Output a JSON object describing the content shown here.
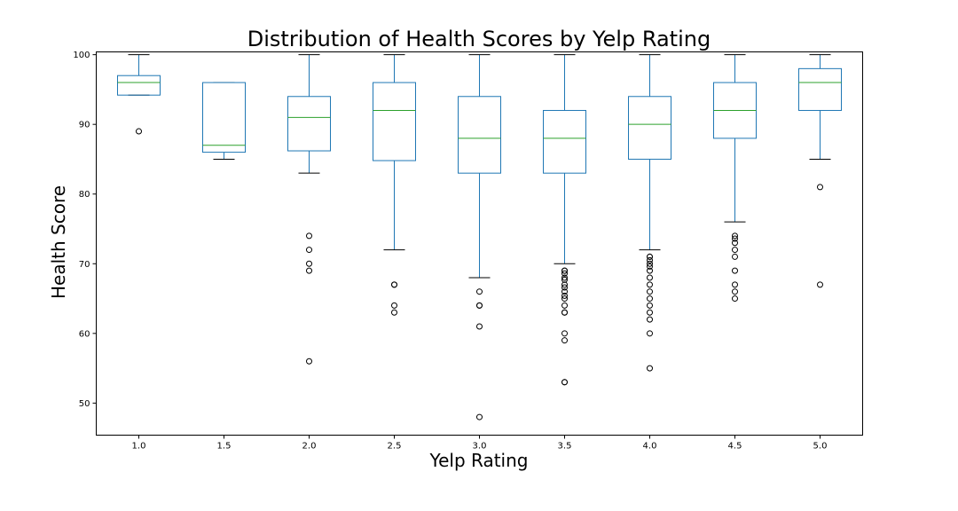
{
  "chart_data": {
    "type": "box",
    "title": "Distribution of Health Scores by Yelp Rating",
    "xlabel": "Yelp Rating",
    "ylabel": "Health Score",
    "ylim": [
      45.4,
      100.4
    ],
    "yticks": [
      50,
      60,
      70,
      80,
      90,
      100
    ],
    "grid": false,
    "colors": {
      "box": "#1f77b4",
      "median": "#2ca02c",
      "whisker": "#1f77b4",
      "cap": "#000000",
      "flier": "#000000",
      "axes": "#000000"
    },
    "categories": [
      "1.0",
      "1.5",
      "2.0",
      "2.5",
      "3.0",
      "3.5",
      "4.0",
      "4.5",
      "5.0"
    ],
    "boxes": [
      {
        "category": "1.0",
        "whisker_low": 94.2,
        "q1": 94.2,
        "median": 96.0,
        "q3": 97.0,
        "whisker_high": 100,
        "outliers": [
          89
        ]
      },
      {
        "category": "1.5",
        "whisker_low": 85.0,
        "q1": 86.0,
        "median": 87.0,
        "q3": 96.0,
        "whisker_high": 96,
        "outliers": []
      },
      {
        "category": "2.0",
        "whisker_low": 83.0,
        "q1": 86.2,
        "median": 91.0,
        "q3": 94.0,
        "whisker_high": 100,
        "outliers": [
          74,
          72,
          70,
          69,
          56
        ]
      },
      {
        "category": "2.5",
        "whisker_low": 72.0,
        "q1": 84.8,
        "median": 92.0,
        "q3": 96.0,
        "whisker_high": 100,
        "outliers": [
          67,
          67,
          64,
          63
        ]
      },
      {
        "category": "3.0",
        "whisker_low": 68.0,
        "q1": 83.0,
        "median": 88.0,
        "q3": 94.0,
        "whisker_high": 100,
        "outliers": [
          66,
          64,
          64,
          61,
          48
        ]
      },
      {
        "category": "3.5",
        "whisker_low": 70.0,
        "q1": 83.0,
        "median": 88.0,
        "q3": 92.0,
        "whisker_high": 100,
        "outliers": [
          69,
          69,
          68.6,
          68,
          67.7,
          67,
          66.6,
          66,
          65.4,
          65,
          64,
          63,
          63,
          60,
          59,
          53,
          53
        ]
      },
      {
        "category": "4.0",
        "whisker_low": 72.0,
        "q1": 85.0,
        "median": 90.0,
        "q3": 94.0,
        "whisker_high": 100,
        "outliers": [
          71,
          71,
          70.5,
          70,
          69.6,
          69,
          68,
          67,
          66,
          65,
          64,
          63,
          62,
          60,
          55
        ]
      },
      {
        "category": "4.5",
        "whisker_low": 76.0,
        "q1": 88.0,
        "median": 92.0,
        "q3": 96.0,
        "whisker_high": 100,
        "outliers": [
          74,
          73.6,
          73,
          72,
          71,
          69,
          67,
          66,
          65
        ]
      },
      {
        "category": "5.0",
        "whisker_low": 85.0,
        "q1": 92.0,
        "median": 96.0,
        "q3": 98.0,
        "whisker_high": 100,
        "outliers": [
          81,
          67
        ]
      }
    ]
  }
}
